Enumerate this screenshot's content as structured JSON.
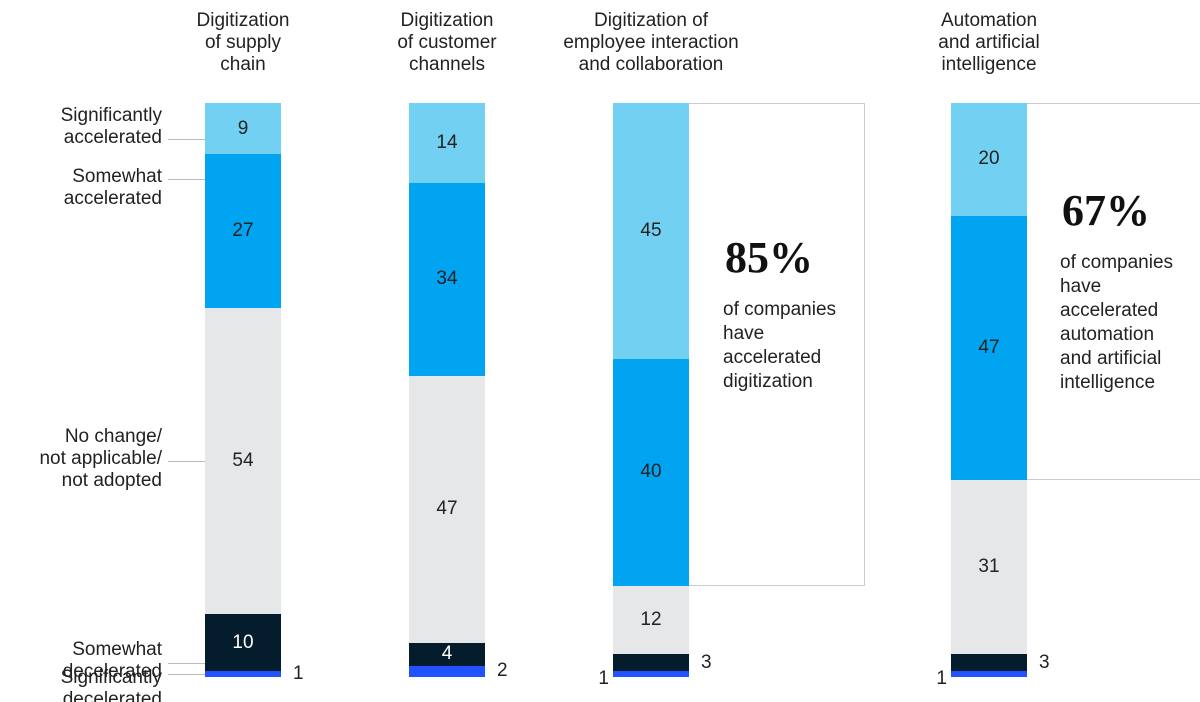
{
  "chart_data": {
    "type": "stacked_bar",
    "categories": [
      "Digitization\nof supply\nchain",
      "Digitization\nof customer\nchannels",
      "Digitization of\nemployee interaction\nand collaboration",
      "Automation\nand artificial\nintelligence"
    ],
    "series": [
      {
        "name": "Significantly\naccelerated",
        "color": "#72d0f2",
        "values": [
          9,
          14,
          45,
          20
        ]
      },
      {
        "name": "Somewhat\naccelerated",
        "color": "#00a4f0",
        "values": [
          27,
          34,
          40,
          47
        ]
      },
      {
        "name": "No change/\nnot applicable/\nnot adopted",
        "color": "#e6e7e8",
        "values": [
          54,
          47,
          12,
          31
        ]
      },
      {
        "name": "Somewhat\ndecelerated",
        "color": "#051c2c",
        "values": [
          10,
          4,
          3,
          3
        ]
      },
      {
        "name": "Significantly\ndecelerated",
        "color": "#2251ff",
        "values": [
          1,
          2,
          1,
          1
        ]
      }
    ],
    "annotations": [
      {
        "label": "85%",
        "text": "of companies\nhave\naccelerated\ndigitization"
      },
      {
        "label": "67%",
        "text": "of companies\nhave\naccelerated\nautomation\nand artificial\nintelligence"
      }
    ]
  }
}
